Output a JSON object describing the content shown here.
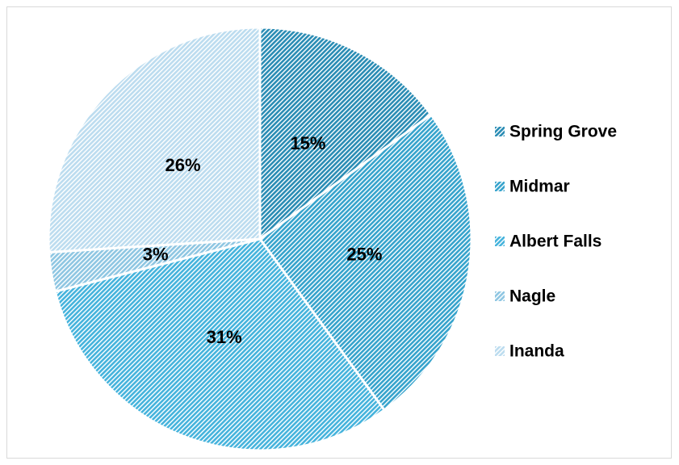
{
  "chart_data": {
    "type": "pie",
    "categories": [
      "Spring Grove",
      "Midmar",
      "Albert Falls",
      "Nagle",
      "Inanda"
    ],
    "values": [
      15,
      25,
      31,
      3,
      26
    ],
    "value_labels": [
      "15%",
      "25%",
      "31%",
      "3%",
      "26%"
    ],
    "colors": [
      "#2a8cb4",
      "#36a3cc",
      "#45b3dc",
      "#8ec6e2",
      "#bcdcef"
    ],
    "legend": "right"
  }
}
